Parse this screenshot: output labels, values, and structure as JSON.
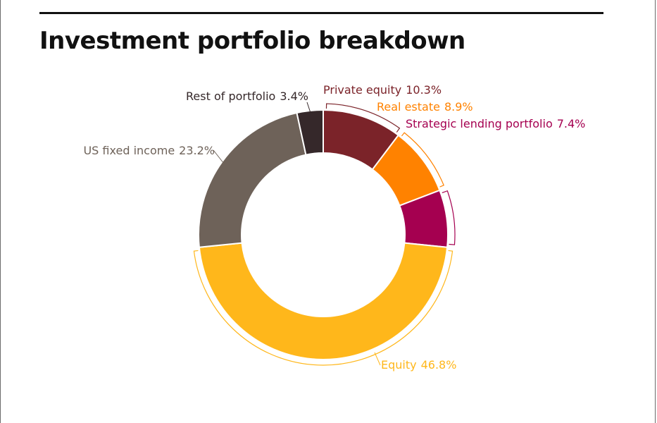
{
  "chart_data": {
    "type": "pie",
    "style": "donut",
    "title": "Investment portfolio breakdown",
    "slices": [
      {
        "label": "Private equity",
        "value_label": "10.3%",
        "value": 10.3,
        "color": "#7B2329"
      },
      {
        "label": "Real estate",
        "value_label": "8.9%",
        "value": 8.9,
        "color": "#FF8200"
      },
      {
        "label": "Strategic lending portfolio",
        "value_label": "7.4%",
        "value": 7.4,
        "color": "#A50050"
      },
      {
        "label": "Equity",
        "value_label": "46.8%",
        "value": 46.8,
        "color": "#FFB71B"
      },
      {
        "label": "US fixed income",
        "value_label": "23.2%",
        "value": 23.2,
        "color": "#6E6259"
      },
      {
        "label": "Rest of portfolio",
        "value_label": "3.4%",
        "value": 3.4,
        "color": "#35282A"
      }
    ]
  }
}
